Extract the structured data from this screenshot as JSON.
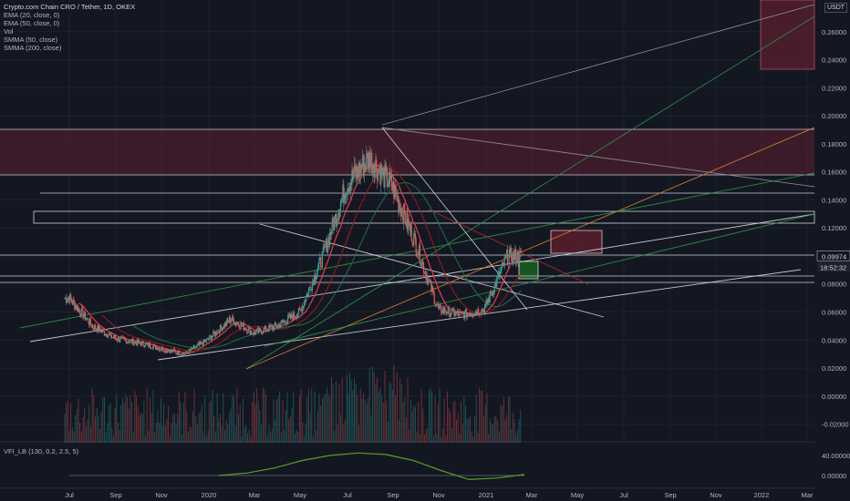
{
  "header": {
    "title": "Crypto.com Chain CRO / Tether, 1D, OKEX",
    "indicators": [
      "EMA (20, close, 0)",
      "EMA (50, close, 0)",
      "Vol",
      "SMMA (50, close)",
      "SMMA (200, close)"
    ]
  },
  "sub_panel": {
    "label": "VFI_LB (130, 0.2, 2.5, 5)"
  },
  "price_axis": {
    "unit": "USDT"
  },
  "price_tags": {
    "last": "0.09974",
    "countdown": "18:52:32"
  },
  "colors": {
    "background": "#131722",
    "up_candle": "#26a69a",
    "down_candle": "#ef5350",
    "ema20": "#f23645",
    "ema50": "#9c1c1c",
    "smma": "#1e7a4c",
    "vfi": "#5b9c2a",
    "zone": "#5c1f2f"
  },
  "chart_data": [
    {
      "type": "line",
      "title": "Crypto.com Chain CRO / Tether, 1D, OKEX",
      "x": [
        "2019-07",
        "2019-08",
        "2019-09",
        "2019-10",
        "2019-11",
        "2019-12",
        "2020-01",
        "2020-02",
        "2020-03",
        "2020-04",
        "2020-05",
        "2020-06",
        "2020-07",
        "2020-08",
        "2020-09",
        "2020-10",
        "2020-11",
        "2020-12",
        "2021-01",
        "2021-02"
      ],
      "series": [
        {
          "values": [
            0.07,
            0.05,
            0.041,
            0.038,
            0.034,
            0.03,
            0.04,
            0.055,
            0.045,
            0.05,
            0.06,
            0.1,
            0.15,
            0.17,
            0.15,
            0.11,
            0.062,
            0.058,
            0.062,
            0.0997
          ]
        }
      ],
      "xlabel": "",
      "ylabel": "",
      "x_ticks": [
        "Jul",
        "Sep",
        "Nov",
        "2020",
        "Mar",
        "May",
        "Jul",
        "Sep",
        "Nov",
        "2021",
        "Mar",
        "May",
        "Jul",
        "Sep",
        "Nov",
        "2022",
        "Mar"
      ],
      "y_ticks": [
        "0.26000",
        "0.24000",
        "0.22000",
        "0.20000",
        "0.18000",
        "0.16000",
        "0.14000",
        "0.12000",
        "0.10000",
        "0.08000",
        "0.06000",
        "0.04000",
        "0.02000",
        "0.00000",
        "-0.02000"
      ],
      "ylim": [
        -0.03,
        0.28
      ],
      "grid": true,
      "last_value": 0.09974
    },
    {
      "type": "line",
      "title": "VFI_LB (130, 0.2, 2.5, 5)",
      "y_ticks": [
        "40.00000",
        "0.00000"
      ],
      "series": [
        {
          "values": [
            0,
            5,
            15,
            30,
            40,
            45,
            42,
            30,
            10,
            -8,
            -5,
            2
          ]
        }
      ]
    }
  ]
}
